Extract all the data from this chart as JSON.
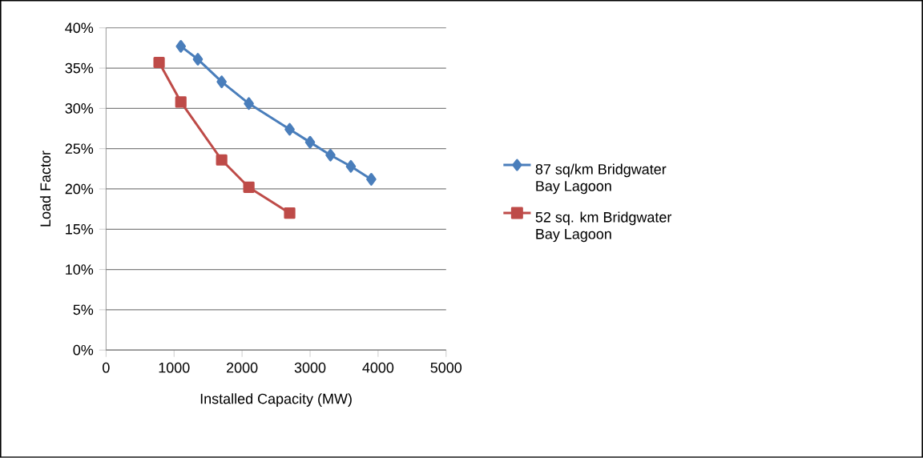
{
  "chart_data": {
    "type": "line",
    "xlabel": "Installed Capacity (MW)",
    "ylabel": "Load Factor",
    "xlim": [
      0,
      5000
    ],
    "xticks": [
      0,
      1000,
      2000,
      3000,
      4000,
      5000
    ],
    "ylim": [
      0,
      40
    ],
    "yticks": [
      {
        "value": 0,
        "label": "0%"
      },
      {
        "value": 5,
        "label": "5%"
      },
      {
        "value": 10,
        "label": "10%"
      },
      {
        "value": 15,
        "label": "15%"
      },
      {
        "value": 20,
        "label": "20%"
      },
      {
        "value": 25,
        "label": "25%"
      },
      {
        "value": 30,
        "label": "30%"
      },
      {
        "value": 35,
        "label": "35%"
      },
      {
        "value": 40,
        "label": "40%"
      }
    ],
    "grid": "y",
    "legend": "right",
    "line_style": "solid",
    "series": [
      {
        "name": "87 sq/km Bridgwater Bay Lagoon",
        "color": "#4a7ebb",
        "marker": "diamond",
        "x": [
          1100,
          1350,
          1700,
          2100,
          2700,
          3000,
          3300,
          3600,
          3900
        ],
        "values": [
          37.7,
          36.1,
          33.3,
          30.6,
          27.4,
          25.8,
          24.2,
          22.8,
          21.2
        ]
      },
      {
        "name": "52 sq. km Bridgwater Bay Lagoon",
        "color": "#be4b48",
        "marker": "square",
        "x": [
          780,
          1100,
          1700,
          2100,
          2700
        ],
        "values": [
          35.7,
          30.8,
          23.6,
          20.2,
          17.0
        ]
      }
    ]
  }
}
